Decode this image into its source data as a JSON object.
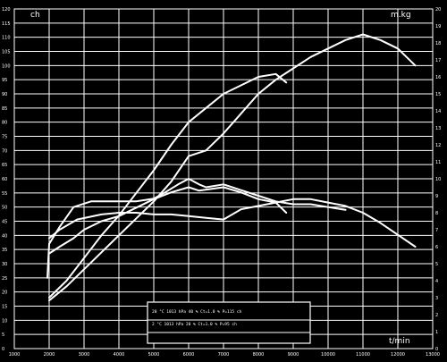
{
  "chart_data": {
    "type": "line",
    "title": "",
    "xlabel": "",
    "ylabel": "",
    "units": {
      "left": "ch",
      "right": "m.kg",
      "bottom": "t/min"
    },
    "xlim": [
      1000,
      13000
    ],
    "ylim_left": [
      0,
      120
    ],
    "ylim_right": [
      0,
      20
    ],
    "grid": true,
    "x_ticks": [
      "1000",
      "2000",
      "3000",
      "4000",
      "5000",
      "6000",
      "7000",
      "8000",
      "9000",
      "10000",
      "11000",
      "12000",
      "13000"
    ],
    "y_ticks_left": [
      "0",
      "5",
      "10",
      "15",
      "20",
      "25",
      "30",
      "35",
      "40",
      "45",
      "50",
      "55",
      "60",
      "65",
      "70",
      "75",
      "80",
      "85",
      "90",
      "95",
      "100",
      "105",
      "110",
      "115",
      "120"
    ],
    "y_ticks_right": [
      "0",
      "1",
      "2",
      "3",
      "4",
      "5",
      "6",
      "7",
      "8",
      "9",
      "10",
      "11",
      "12",
      "13",
      "14",
      "15",
      "16",
      "17",
      "18",
      "19",
      "20"
    ],
    "legend_box": [
      {
        "text": "20 °C 1013 hPa 40 % Ct=1.0 % P=115 ch"
      },
      {
        "text": "2 °C 1013 hPa 20 % Ct=1.0 % P=95 ch"
      }
    ],
    "series": [
      {
        "axis": "left",
        "points": [
          [
            2000,
            17
          ],
          [
            2500,
            22
          ],
          [
            3000,
            28
          ],
          [
            3500,
            34
          ],
          [
            4000,
            40
          ],
          [
            4500,
            46
          ],
          [
            5000,
            52
          ],
          [
            5500,
            59
          ],
          [
            6000,
            68
          ],
          [
            6500,
            70
          ],
          [
            7000,
            76
          ],
          [
            7500,
            83
          ],
          [
            8000,
            90
          ],
          [
            8500,
            95
          ],
          [
            9000,
            99
          ],
          [
            9500,
            103
          ],
          [
            10000,
            106
          ],
          [
            10500,
            109
          ],
          [
            11000,
            111
          ],
          [
            11500,
            109
          ],
          [
            12000,
            106
          ],
          [
            12500,
            100
          ]
        ]
      },
      {
        "axis": "left",
        "points": [
          [
            2000,
            18
          ],
          [
            2500,
            24
          ],
          [
            3000,
            32
          ],
          [
            3500,
            40
          ],
          [
            4000,
            47
          ],
          [
            4500,
            55
          ],
          [
            5000,
            63
          ],
          [
            5500,
            72
          ],
          [
            6000,
            80
          ],
          [
            6500,
            85
          ],
          [
            7000,
            90
          ],
          [
            7500,
            93
          ],
          [
            8000,
            96
          ],
          [
            8500,
            97
          ],
          [
            8800,
            94
          ]
        ]
      },
      {
        "axis": "right",
        "points": [
          [
            2000,
            5.6
          ],
          [
            2300,
            6
          ],
          [
            2700,
            6.5
          ],
          [
            3000,
            7
          ],
          [
            3500,
            7.5
          ],
          [
            4000,
            7.8
          ],
          [
            4500,
            8.3
          ],
          [
            5000,
            8.8
          ],
          [
            5500,
            9.2
          ],
          [
            6000,
            9.5
          ],
          [
            6300,
            9.3
          ],
          [
            7000,
            9.5
          ],
          [
            7500,
            9.2
          ],
          [
            8000,
            8.8
          ],
          [
            8500,
            8.6
          ],
          [
            8800,
            8
          ]
        ]
      },
      {
        "axis": "right",
        "points": [
          [
            2000,
            6.5
          ],
          [
            2300,
            7
          ],
          [
            2800,
            7.6
          ],
          [
            3500,
            7.9
          ],
          [
            4000,
            8
          ],
          [
            4500,
            8
          ],
          [
            5000,
            7.9
          ],
          [
            5500,
            7.9
          ],
          [
            6000,
            7.8
          ],
          [
            6500,
            7.7
          ],
          [
            7000,
            7.6
          ],
          [
            7500,
            8.2
          ],
          [
            8000,
            8.4
          ],
          [
            8500,
            8.6
          ],
          [
            9000,
            8.8
          ],
          [
            9500,
            8.8
          ],
          [
            10000,
            8.6
          ],
          [
            10500,
            8.4
          ],
          [
            11000,
            8
          ],
          [
            11500,
            7.4
          ],
          [
            12000,
            6.7
          ],
          [
            12500,
            6
          ]
        ]
      },
      {
        "axis": "left",
        "points": [
          [
            1950,
            25
          ],
          [
            2000,
            37
          ],
          [
            2300,
            43
          ],
          [
            2700,
            50
          ],
          [
            3200,
            52
          ],
          [
            3700,
            52
          ],
          [
            4500,
            52
          ],
          [
            5000,
            53
          ],
          [
            5300,
            55
          ],
          [
            5700,
            58
          ],
          [
            6000,
            60
          ],
          [
            6300,
            58
          ],
          [
            6500,
            57
          ],
          [
            7000,
            58
          ],
          [
            7500,
            56
          ],
          [
            8000,
            54
          ],
          [
            8500,
            52
          ],
          [
            9000,
            51
          ],
          [
            9500,
            51
          ],
          [
            10000,
            50
          ],
          [
            10500,
            49
          ]
        ]
      }
    ]
  }
}
